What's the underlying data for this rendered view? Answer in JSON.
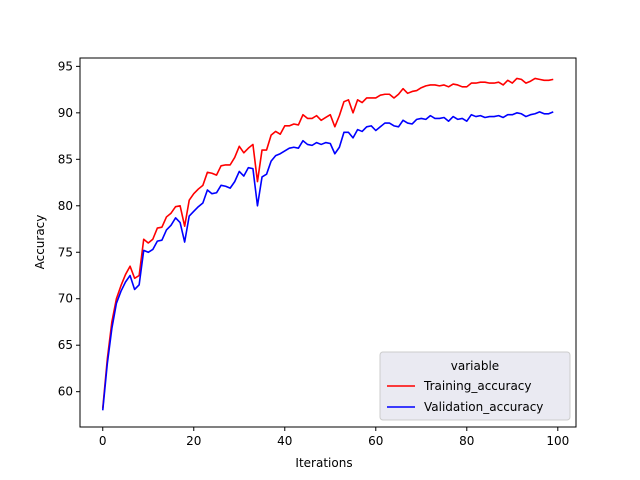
{
  "chart_data": {
    "type": "line",
    "title": "",
    "xlabel": "Iterations",
    "ylabel": "Accuracy",
    "xlim": [
      -5,
      104
    ],
    "ylim": [
      56.2,
      95.9
    ],
    "xticks": [
      0,
      20,
      40,
      60,
      80,
      100
    ],
    "yticks": [
      60,
      65,
      70,
      75,
      80,
      85,
      90,
      95
    ],
    "grid": false,
    "legend": {
      "title": "variable",
      "placement": "lower-right"
    },
    "series": [
      {
        "name": "Training_accuracy",
        "color": "#ff0000",
        "x": [
          0,
          1,
          2,
          3,
          4,
          5,
          6,
          7,
          8,
          9,
          10,
          11,
          12,
          13,
          14,
          15,
          16,
          17,
          18,
          19,
          20,
          21,
          22,
          23,
          24,
          25,
          26,
          27,
          28,
          29,
          30,
          31,
          32,
          33,
          34,
          35,
          36,
          37,
          38,
          39,
          40,
          41,
          42,
          43,
          44,
          45,
          46,
          47,
          48,
          49,
          50,
          51,
          52,
          53,
          54,
          55,
          56,
          57,
          58,
          59,
          60,
          61,
          62,
          63,
          64,
          65,
          66,
          67,
          68,
          69,
          70,
          71,
          72,
          73,
          74,
          75,
          76,
          77,
          78,
          79,
          80,
          81,
          82,
          83,
          84,
          85,
          86,
          87,
          88,
          89,
          90,
          91,
          92,
          93,
          94,
          95,
          96,
          97,
          98,
          99
        ],
        "values": [
          58.2,
          63.5,
          67.5,
          70.0,
          71.4,
          72.6,
          73.5,
          72.2,
          72.5,
          76.4,
          76.0,
          76.4,
          77.6,
          77.7,
          78.8,
          79.2,
          79.9,
          80.0,
          77.8,
          80.6,
          81.3,
          81.8,
          82.2,
          83.6,
          83.5,
          83.3,
          84.3,
          84.4,
          84.4,
          85.2,
          86.4,
          85.7,
          86.2,
          86.6,
          82.6,
          86.0,
          86.0,
          87.6,
          88.0,
          87.7,
          88.6,
          88.6,
          88.8,
          88.7,
          89.8,
          89.4,
          89.4,
          89.7,
          89.2,
          89.5,
          89.8,
          88.5,
          89.7,
          91.2,
          91.4,
          90.0,
          91.4,
          91.1,
          91.6,
          91.6,
          91.6,
          91.9,
          92.0,
          92.0,
          91.6,
          92.0,
          92.6,
          92.1,
          92.3,
          92.4,
          92.7,
          92.9,
          93.0,
          93.0,
          92.9,
          93.0,
          92.8,
          93.1,
          93.0,
          92.8,
          92.8,
          93.2,
          93.2,
          93.3,
          93.3,
          93.2,
          93.2,
          93.3,
          93.0,
          93.5,
          93.2,
          93.7,
          93.6,
          93.2,
          93.4,
          93.7,
          93.6,
          93.5,
          93.5,
          93.6
        ]
      },
      {
        "name": "Validation_accuracy",
        "color": "#0000ff",
        "x": [
          0,
          1,
          2,
          3,
          4,
          5,
          6,
          7,
          8,
          9,
          10,
          11,
          12,
          13,
          14,
          15,
          16,
          17,
          18,
          19,
          20,
          21,
          22,
          23,
          24,
          25,
          26,
          27,
          28,
          29,
          30,
          31,
          32,
          33,
          34,
          35,
          36,
          37,
          38,
          39,
          40,
          41,
          42,
          43,
          44,
          45,
          46,
          47,
          48,
          49,
          50,
          51,
          52,
          53,
          54,
          55,
          56,
          57,
          58,
          59,
          60,
          61,
          62,
          63,
          64,
          65,
          66,
          67,
          68,
          69,
          70,
          71,
          72,
          73,
          74,
          75,
          76,
          77,
          78,
          79,
          80,
          81,
          82,
          83,
          84,
          85,
          86,
          87,
          88,
          89,
          90,
          91,
          92,
          93,
          94,
          95,
          96,
          97,
          98,
          99
        ],
        "values": [
          58.0,
          63.0,
          66.8,
          69.5,
          70.8,
          71.8,
          72.5,
          71.0,
          71.5,
          75.2,
          75.0,
          75.3,
          76.2,
          76.3,
          77.4,
          77.9,
          78.7,
          78.2,
          76.1,
          78.9,
          79.4,
          79.9,
          80.3,
          81.7,
          81.3,
          81.4,
          82.2,
          82.1,
          81.9,
          82.6,
          83.7,
          83.2,
          84.1,
          84.0,
          80.0,
          83.1,
          83.4,
          84.8,
          85.4,
          85.6,
          85.9,
          86.2,
          86.3,
          86.2,
          87.0,
          86.6,
          86.5,
          86.8,
          86.6,
          86.8,
          86.7,
          85.6,
          86.3,
          87.9,
          87.9,
          87.3,
          88.2,
          88.0,
          88.5,
          88.6,
          88.1,
          88.5,
          88.9,
          88.9,
          88.6,
          88.5,
          89.2,
          88.9,
          88.8,
          89.3,
          89.4,
          89.3,
          89.7,
          89.4,
          89.4,
          89.5,
          89.1,
          89.6,
          89.3,
          89.4,
          89.1,
          89.8,
          89.6,
          89.7,
          89.5,
          89.6,
          89.6,
          89.7,
          89.5,
          89.8,
          89.8,
          90.0,
          89.9,
          89.6,
          89.8,
          89.9,
          90.1,
          89.9,
          89.9,
          90.1
        ]
      }
    ]
  }
}
